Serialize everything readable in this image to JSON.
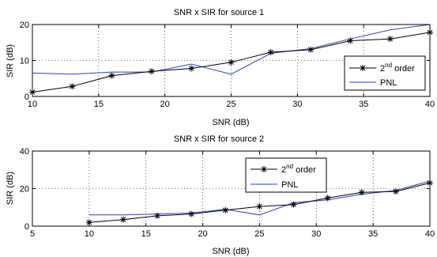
{
  "chart_data": [
    {
      "type": "line",
      "title": "SNR x SIR for source 1",
      "xlabel": "SNR (dB)",
      "ylabel": "SIR (dB)",
      "xlim": [
        10,
        40
      ],
      "ylim": [
        0,
        20
      ],
      "xticks": [
        "10",
        "15",
        "20",
        "25",
        "30",
        "35",
        "40"
      ],
      "yticks": [
        "0",
        "10",
        "20"
      ],
      "grid": true,
      "legend_position": "bottom-right",
      "series": [
        {
          "name": "2nd order",
          "legend_base": "2",
          "legend_sup": "nd",
          "legend_rest": " order",
          "color": "#000000",
          "marker": "asterisk",
          "x": [
            10,
            13,
            16,
            19,
            22,
            25,
            28,
            31,
            34,
            37,
            40
          ],
          "y": [
            1.2,
            2.8,
            5.8,
            7.0,
            7.8,
            9.5,
            12.3,
            13.0,
            15.5,
            16.0,
            17.8
          ]
        },
        {
          "name": "PNL",
          "color": "#2f3fc0",
          "marker": "none",
          "x": [
            10,
            13,
            16,
            19,
            22,
            25,
            28,
            31,
            34,
            37,
            40
          ],
          "y": [
            6.5,
            6.2,
            6.8,
            6.8,
            9.0,
            6.2,
            12.0,
            13.3,
            16.0,
            18.5,
            20.0
          ]
        }
      ]
    },
    {
      "type": "line",
      "title": "SNR x SIR for source 2",
      "xlabel": "SNR (dB)",
      "ylabel": "SIR (dB)",
      "xlim": [
        5,
        40
      ],
      "ylim": [
        0,
        40
      ],
      "xticks": [
        "5",
        "10",
        "15",
        "20",
        "25",
        "30",
        "35",
        "40"
      ],
      "yticks": [
        "0",
        "20",
        "40"
      ],
      "grid": true,
      "legend_position": "top-center",
      "series": [
        {
          "name": "2nd order",
          "legend_base": "2",
          "legend_sup": "nd",
          "legend_rest": " order",
          "color": "#000000",
          "marker": "asterisk",
          "x": [
            10,
            13,
            16,
            19,
            22,
            25,
            28,
            31,
            34,
            37,
            40
          ],
          "y": [
            2,
            3.5,
            5.5,
            6.5,
            8.5,
            10.5,
            11.5,
            15,
            18,
            18.5,
            23
          ]
        },
        {
          "name": "PNL",
          "color": "#2f3fc0",
          "marker": "none",
          "x": [
            10,
            13,
            16,
            19,
            22,
            25,
            28,
            31,
            34,
            37,
            40
          ],
          "y": [
            6,
            6,
            6.5,
            7,
            9,
            6,
            12.5,
            14,
            17,
            19,
            24
          ]
        }
      ]
    }
  ]
}
